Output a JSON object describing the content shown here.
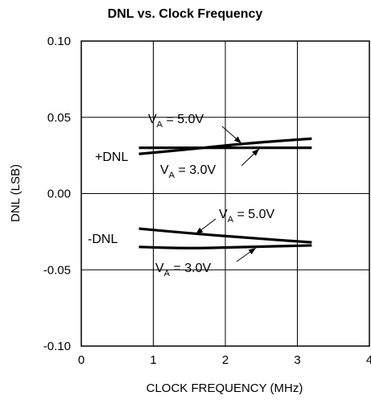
{
  "chart_data": {
    "type": "line",
    "title": "DNL vs. Clock Frequency",
    "xlabel": "CLOCK FREQUENCY (MHz)",
    "ylabel": "DNL (LSB)",
    "xlim": [
      0,
      4
    ],
    "ylim": [
      -0.1,
      0.1
    ],
    "xticks": [
      "0",
      "1",
      "2",
      "3",
      "4"
    ],
    "yticks": [
      "0.10",
      "0.05",
      "0.00",
      "-0.05",
      "-0.10"
    ],
    "grid": true,
    "series": [
      {
        "x": [
          0.8,
          1.5,
          2.3,
          3.2
        ],
        "values": [
          0.026,
          0.029,
          0.033,
          0.036
        ]
      },
      {
        "x": [
          0.8,
          1.5,
          2.3,
          3.2
        ],
        "values": [
          0.03,
          0.03,
          0.03,
          0.03
        ]
      },
      {
        "x": [
          0.8,
          1.5,
          2.3,
          3.2
        ],
        "values": [
          -0.023,
          -0.026,
          -0.029,
          -0.032
        ]
      },
      {
        "x": [
          0.8,
          1.5,
          2.3,
          3.2
        ],
        "values": [
          -0.035,
          -0.036,
          -0.035,
          -0.034
        ]
      }
    ],
    "annotations": {
      "pos_group": "+DNL",
      "neg_group": "-DNL",
      "v_prefix": "V",
      "v_sub": "A",
      "v5": "= 5.0V",
      "v3": "= 3.0V"
    }
  }
}
